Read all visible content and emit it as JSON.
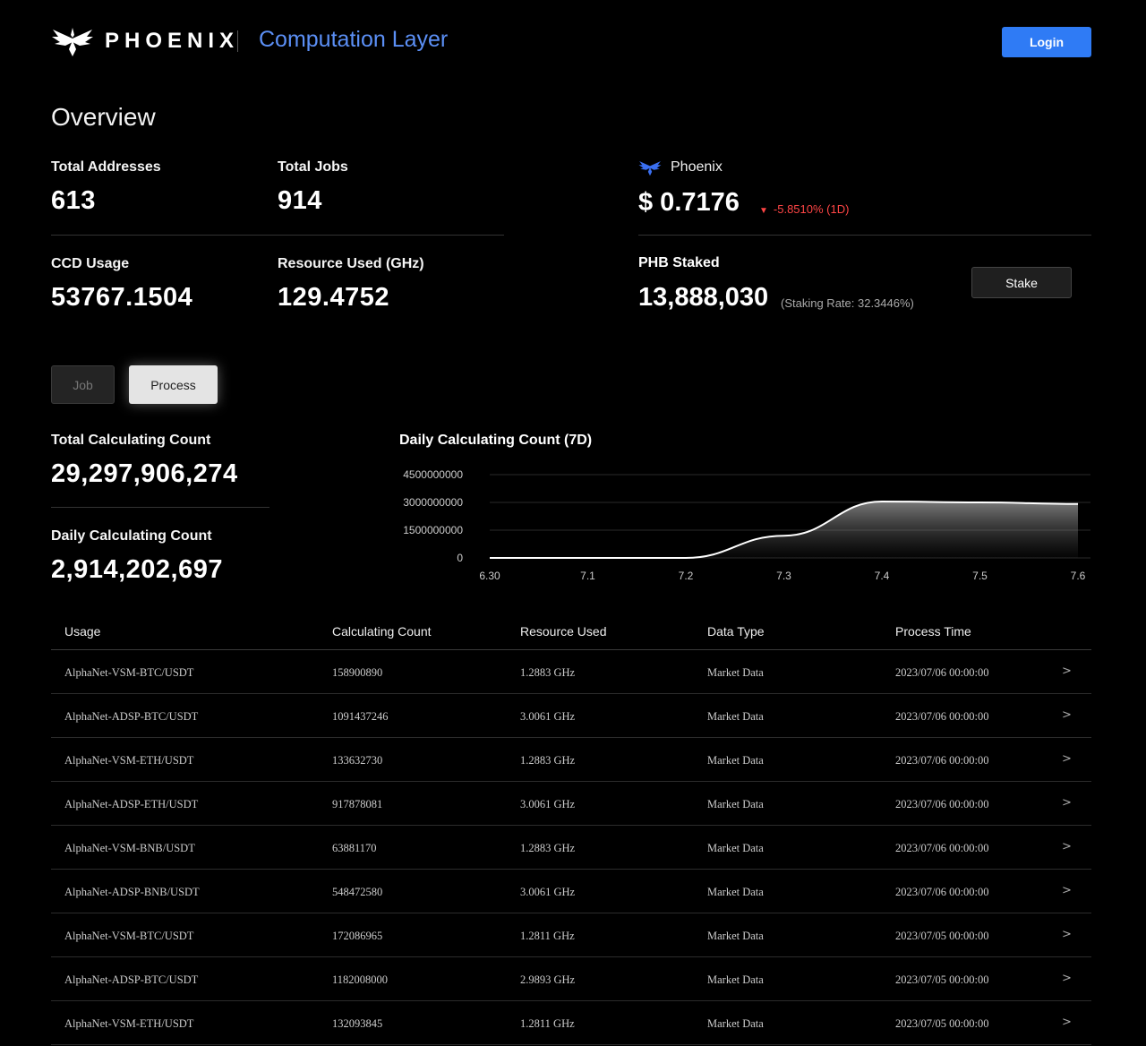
{
  "header": {
    "brand": "PHOENIX",
    "app_title": "Computation Layer",
    "login_label": "Login"
  },
  "overview": {
    "title": "Overview",
    "total_addresses_label": "Total Addresses",
    "total_addresses_value": "613",
    "total_jobs_label": "Total Jobs",
    "total_jobs_value": "914",
    "ccd_usage_label": "CCD Usage",
    "ccd_usage_value": "53767.1504",
    "resource_used_label": "Resource Used (GHz)",
    "resource_used_value": "129.4752"
  },
  "token": {
    "name": "Phoenix",
    "price": "$ 0.7176",
    "change": "-5.8510% (1D)",
    "change_color": "#ff4545",
    "staked_label": "PHB Staked",
    "staked_value": "13,888,030",
    "staking_rate": "(Staking Rate: 32.3446%)",
    "stake_label": "Stake"
  },
  "tabs": {
    "job": "Job",
    "process": "Process",
    "active": "Process"
  },
  "process": {
    "total_label": "Total Calculating Count",
    "total_value": "29,297,906,274",
    "daily_label": "Daily Calculating Count",
    "daily_value": "2,914,202,697"
  },
  "chart_data": {
    "type": "area",
    "title": "Daily Calculating Count (7D)",
    "categories": [
      "6.30",
      "7.1",
      "7.2",
      "7.3",
      "7.4",
      "7.5",
      "7.6"
    ],
    "values": [
      0,
      0,
      0,
      1200000000,
      3050000000,
      3000000000,
      2914202697
    ],
    "yticks": [
      "4500000000",
      "3000000000",
      "1500000000",
      "0"
    ],
    "ylim": [
      0,
      4500000000
    ],
    "grid": true
  },
  "table": {
    "headers": [
      "Usage",
      "Calculating Count",
      "Resource Used",
      "Data Type",
      "Process Time"
    ],
    "rows": [
      [
        "AlphaNet-VSM-BTC/USDT",
        "158900890",
        "1.2883 GHz",
        "Market Data",
        "2023/07/06 00:00:00"
      ],
      [
        "AlphaNet-ADSP-BTC/USDT",
        "1091437246",
        "3.0061 GHz",
        "Market Data",
        "2023/07/06 00:00:00"
      ],
      [
        "AlphaNet-VSM-ETH/USDT",
        "133632730",
        "1.2883 GHz",
        "Market Data",
        "2023/07/06 00:00:00"
      ],
      [
        "AlphaNet-ADSP-ETH/USDT",
        "917878081",
        "3.0061 GHz",
        "Market Data",
        "2023/07/06 00:00:00"
      ],
      [
        "AlphaNet-VSM-BNB/USDT",
        "63881170",
        "1.2883 GHz",
        "Market Data",
        "2023/07/06 00:00:00"
      ],
      [
        "AlphaNet-ADSP-BNB/USDT",
        "548472580",
        "3.0061 GHz",
        "Market Data",
        "2023/07/06 00:00:00"
      ],
      [
        "AlphaNet-VSM-BTC/USDT",
        "172086965",
        "1.2811 GHz",
        "Market Data",
        "2023/07/05 00:00:00"
      ],
      [
        "AlphaNet-ADSP-BTC/USDT",
        "1182008000",
        "2.9893 GHz",
        "Market Data",
        "2023/07/05 00:00:00"
      ],
      [
        "AlphaNet-VSM-ETH/USDT",
        "132093845",
        "1.2811 GHz",
        "Market Data",
        "2023/07/05 00:00:00"
      ]
    ],
    "row_action_icon": ">"
  }
}
